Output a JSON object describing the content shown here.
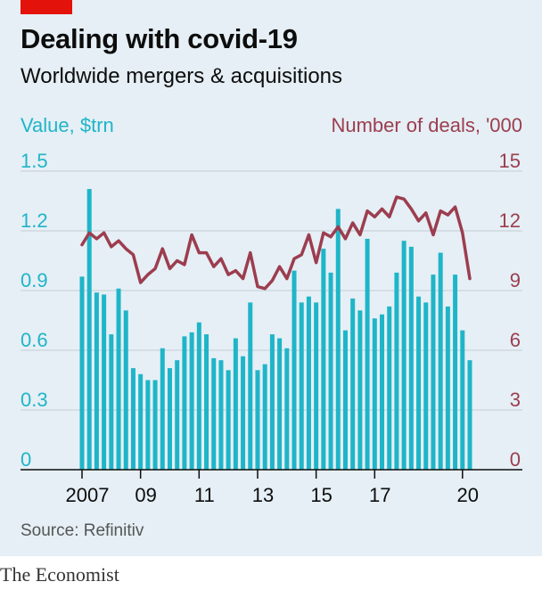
{
  "header": {
    "title": "Dealing with covid-19",
    "subtitle": "Worldwide mergers & acquisitions"
  },
  "footer": {
    "source": "Source: Refinitiv",
    "brand": "The Economist"
  },
  "colors": {
    "bars": "#1fb5c8",
    "line": "#9c3d4f",
    "background": "#e5eff5",
    "brand_red": "#e3120b"
  },
  "chart_data": {
    "type": "bar",
    "left_axis_label": "Value, $trn",
    "right_axis_label": "Number of deals, '000",
    "left_ticks": [
      "1.5",
      "1.2",
      "0.9",
      "0.6",
      "0.3",
      "0"
    ],
    "right_ticks": [
      "15",
      "12",
      "9",
      "6",
      "3",
      "0"
    ],
    "x_tick_labels": [
      "2007",
      "09",
      "11",
      "13",
      "15",
      "17",
      "20"
    ],
    "x_tick_years": [
      2007,
      2009,
      2011,
      2013,
      2015,
      2017,
      2020
    ],
    "ylim_left": [
      0,
      1.5
    ],
    "ylim_right": [
      0,
      15
    ],
    "grid": true,
    "x_range": [
      2007.0,
      2020.25
    ],
    "start": "2007 Q1",
    "end": "2020 Q2",
    "series": [
      {
        "name": "Value, $trn",
        "type": "bar",
        "axis": "left",
        "values": [
          0.97,
          1.41,
          0.89,
          0.88,
          0.68,
          0.91,
          0.8,
          0.51,
          0.48,
          0.45,
          0.45,
          0.61,
          0.51,
          0.55,
          0.67,
          0.69,
          0.74,
          0.68,
          0.56,
          0.55,
          0.5,
          0.66,
          0.57,
          0.84,
          0.5,
          0.53,
          0.68,
          0.66,
          0.61,
          1.0,
          0.84,
          0.87,
          0.84,
          1.11,
          0.99,
          1.31,
          0.7,
          0.86,
          0.8,
          1.16,
          0.76,
          0.78,
          0.82,
          0.99,
          1.15,
          1.12,
          0.87,
          0.84,
          0.98,
          1.09,
          0.82,
          0.98,
          0.7,
          0.55
        ]
      },
      {
        "name": "Number of deals, '000",
        "type": "line",
        "axis": "right",
        "values": [
          11.3,
          11.9,
          11.6,
          11.9,
          11.2,
          11.5,
          11.1,
          10.8,
          9.4,
          9.8,
          10.1,
          11.1,
          10.1,
          10.5,
          10.3,
          11.8,
          10.9,
          10.9,
          10.2,
          10.6,
          9.8,
          10.0,
          9.6,
          10.9,
          9.2,
          9.1,
          9.5,
          10.2,
          9.6,
          10.6,
          10.8,
          11.8,
          10.4,
          11.9,
          11.7,
          12.2,
          11.6,
          12.4,
          11.8,
          13.0,
          12.7,
          13.1,
          12.7,
          13.7,
          13.6,
          13.1,
          12.5,
          12.9,
          11.8,
          13.0,
          12.8,
          13.2,
          11.9,
          9.6
        ]
      }
    ]
  }
}
